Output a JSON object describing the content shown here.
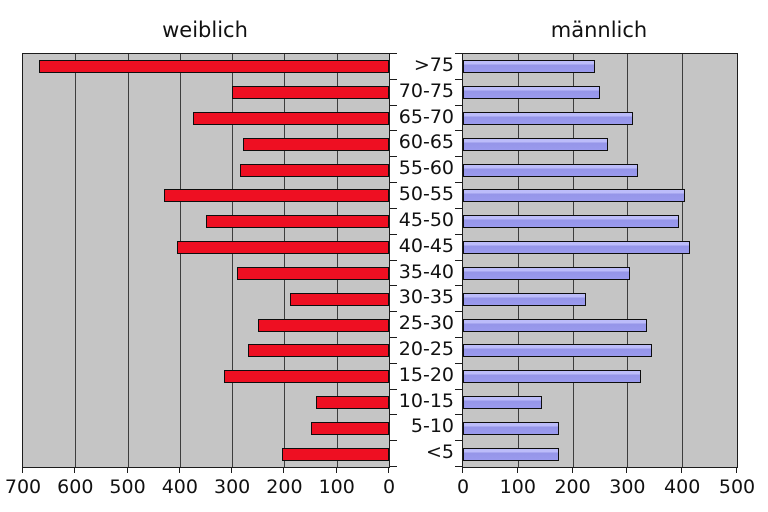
{
  "chart_data": {
    "type": "bar",
    "subtype": "population-pyramid",
    "orientation": "horizontal",
    "grid": true,
    "plot_background": "#c5c5c5",
    "gridline_color": "#3d3d3d",
    "categories": [
      ">75",
      "70-75",
      "65-70",
      "60-65",
      "55-60",
      "50-55",
      "45-50",
      "40-45",
      "35-40",
      "30-35",
      "25-30",
      "20-25",
      "15-20",
      "10-15",
      "5-10",
      "<5"
    ],
    "series": [
      {
        "name": "weiblich",
        "side": "left",
        "color": "#ee0f22",
        "axis_range": [
          0,
          700
        ],
        "axis_reversed": true,
        "ticks": [
          700,
          600,
          500,
          400,
          300,
          200,
          100,
          0
        ],
        "values": [
          670,
          300,
          375,
          280,
          285,
          430,
          350,
          405,
          290,
          190,
          250,
          270,
          315,
          140,
          150,
          205
        ]
      },
      {
        "name": "männlich",
        "side": "right",
        "color": "#9999ee",
        "axis_range": [
          0,
          500
        ],
        "axis_reversed": false,
        "ticks": [
          0,
          100,
          200,
          300,
          400,
          500
        ],
        "values": [
          240,
          250,
          310,
          265,
          320,
          405,
          395,
          415,
          305,
          225,
          335,
          345,
          325,
          145,
          175,
          175
        ]
      }
    ]
  }
}
